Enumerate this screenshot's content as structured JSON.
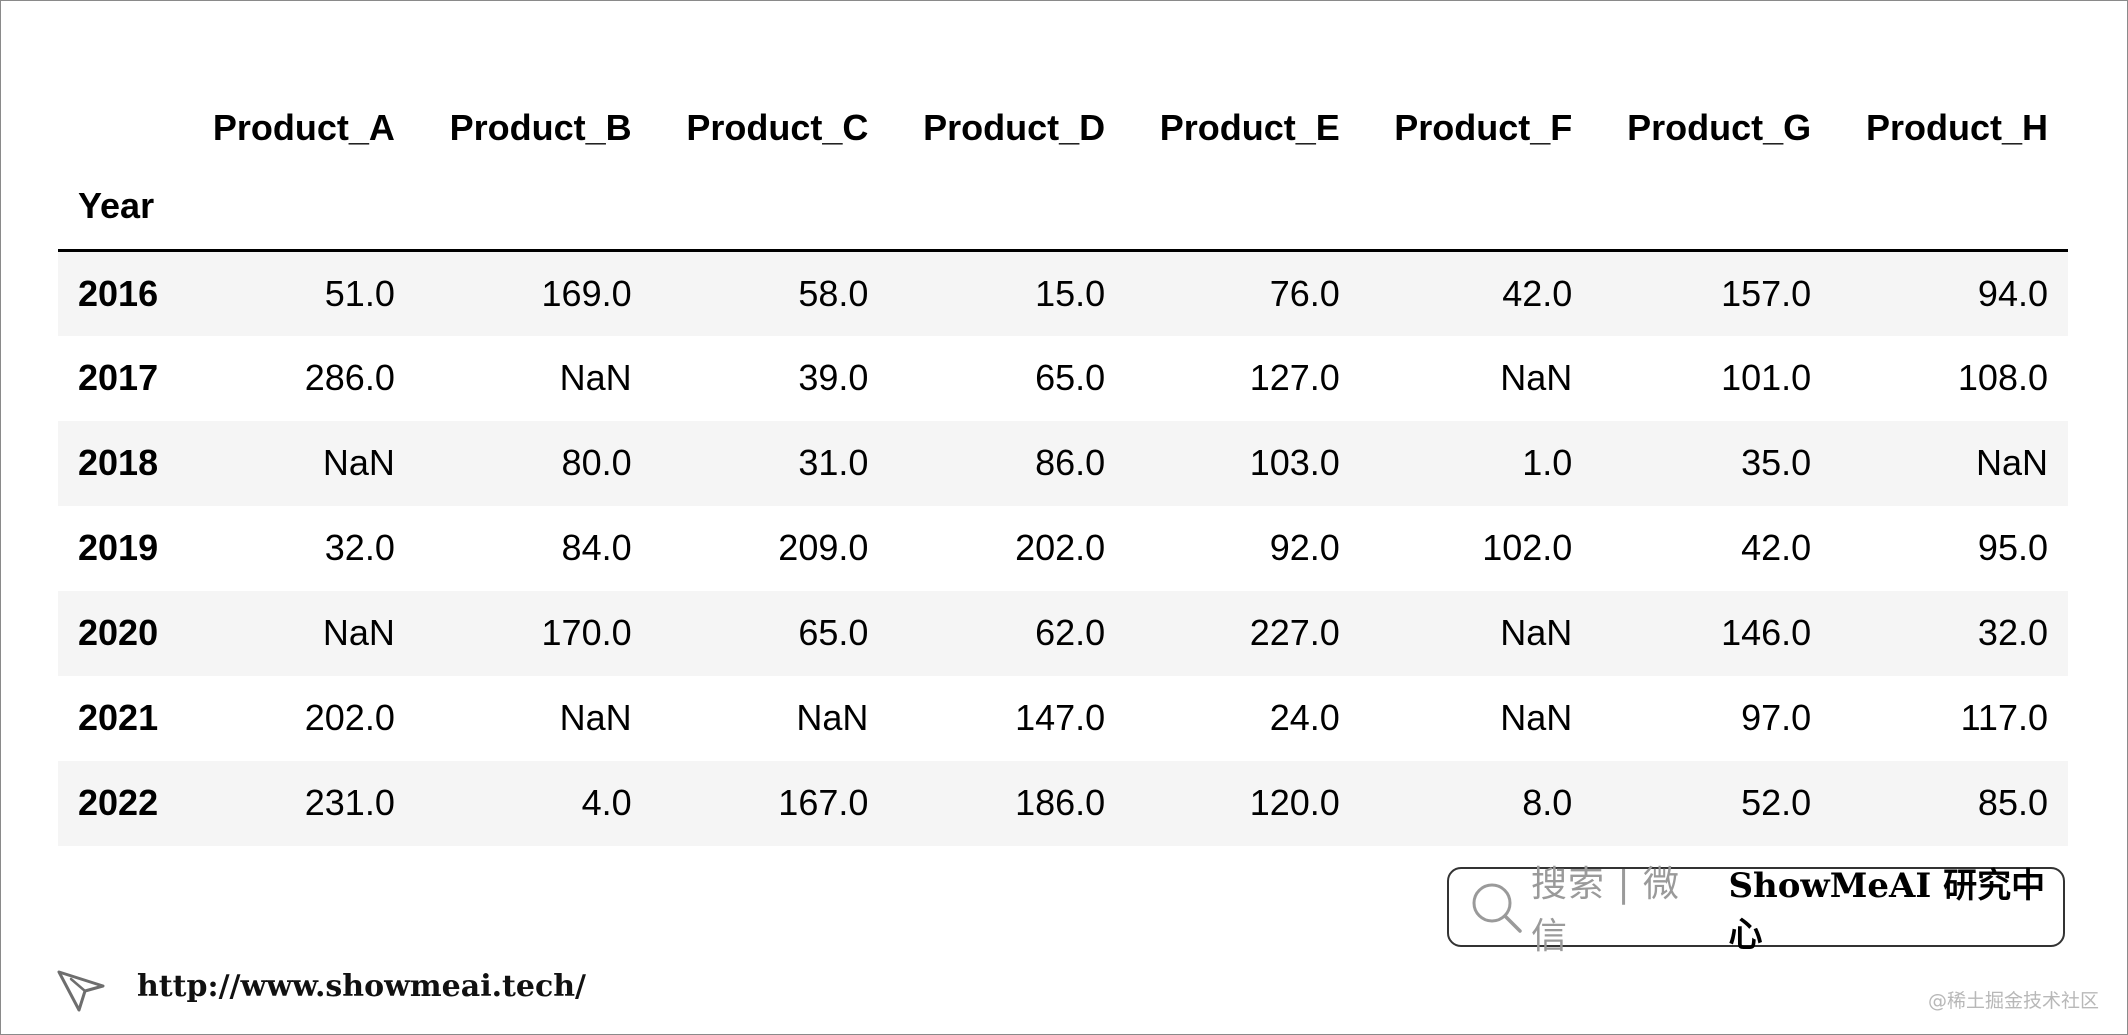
{
  "table": {
    "index_name": "Year",
    "columns": [
      "Product_A",
      "Product_B",
      "Product_C",
      "Product_D",
      "Product_E",
      "Product_F",
      "Product_G",
      "Product_H"
    ],
    "rows": [
      {
        "year": "2016",
        "values": [
          "51.0",
          "169.0",
          "58.0",
          "15.0",
          "76.0",
          "42.0",
          "157.0",
          "94.0"
        ]
      },
      {
        "year": "2017",
        "values": [
          "286.0",
          "NaN",
          "39.0",
          "65.0",
          "127.0",
          "NaN",
          "101.0",
          "108.0"
        ]
      },
      {
        "year": "2018",
        "values": [
          "NaN",
          "80.0",
          "31.0",
          "86.0",
          "103.0",
          "1.0",
          "35.0",
          "NaN"
        ]
      },
      {
        "year": "2019",
        "values": [
          "32.0",
          "84.0",
          "209.0",
          "202.0",
          "92.0",
          "102.0",
          "42.0",
          "95.0"
        ]
      },
      {
        "year": "2020",
        "values": [
          "NaN",
          "170.0",
          "65.0",
          "62.0",
          "227.0",
          "NaN",
          "146.0",
          "32.0"
        ]
      },
      {
        "year": "2021",
        "values": [
          "202.0",
          "NaN",
          "NaN",
          "147.0",
          "24.0",
          "NaN",
          "97.0",
          "117.0"
        ]
      },
      {
        "year": "2022",
        "values": [
          "231.0",
          "4.0",
          "167.0",
          "186.0",
          "120.0",
          "8.0",
          "52.0",
          "85.0"
        ]
      }
    ]
  },
  "search_badge": {
    "hint": "搜索 | 微信",
    "brand": "ShowMeAI 研究中心",
    "icon": "search-icon"
  },
  "footer": {
    "url": "http://www.showmeai.tech/",
    "icon": "cursor-icon"
  },
  "watermark": "@稀土掘金技术社区",
  "colors": {
    "row_stripe": "#f5f5f5",
    "border": "#000000",
    "hint_text": "#9a9a9a"
  }
}
